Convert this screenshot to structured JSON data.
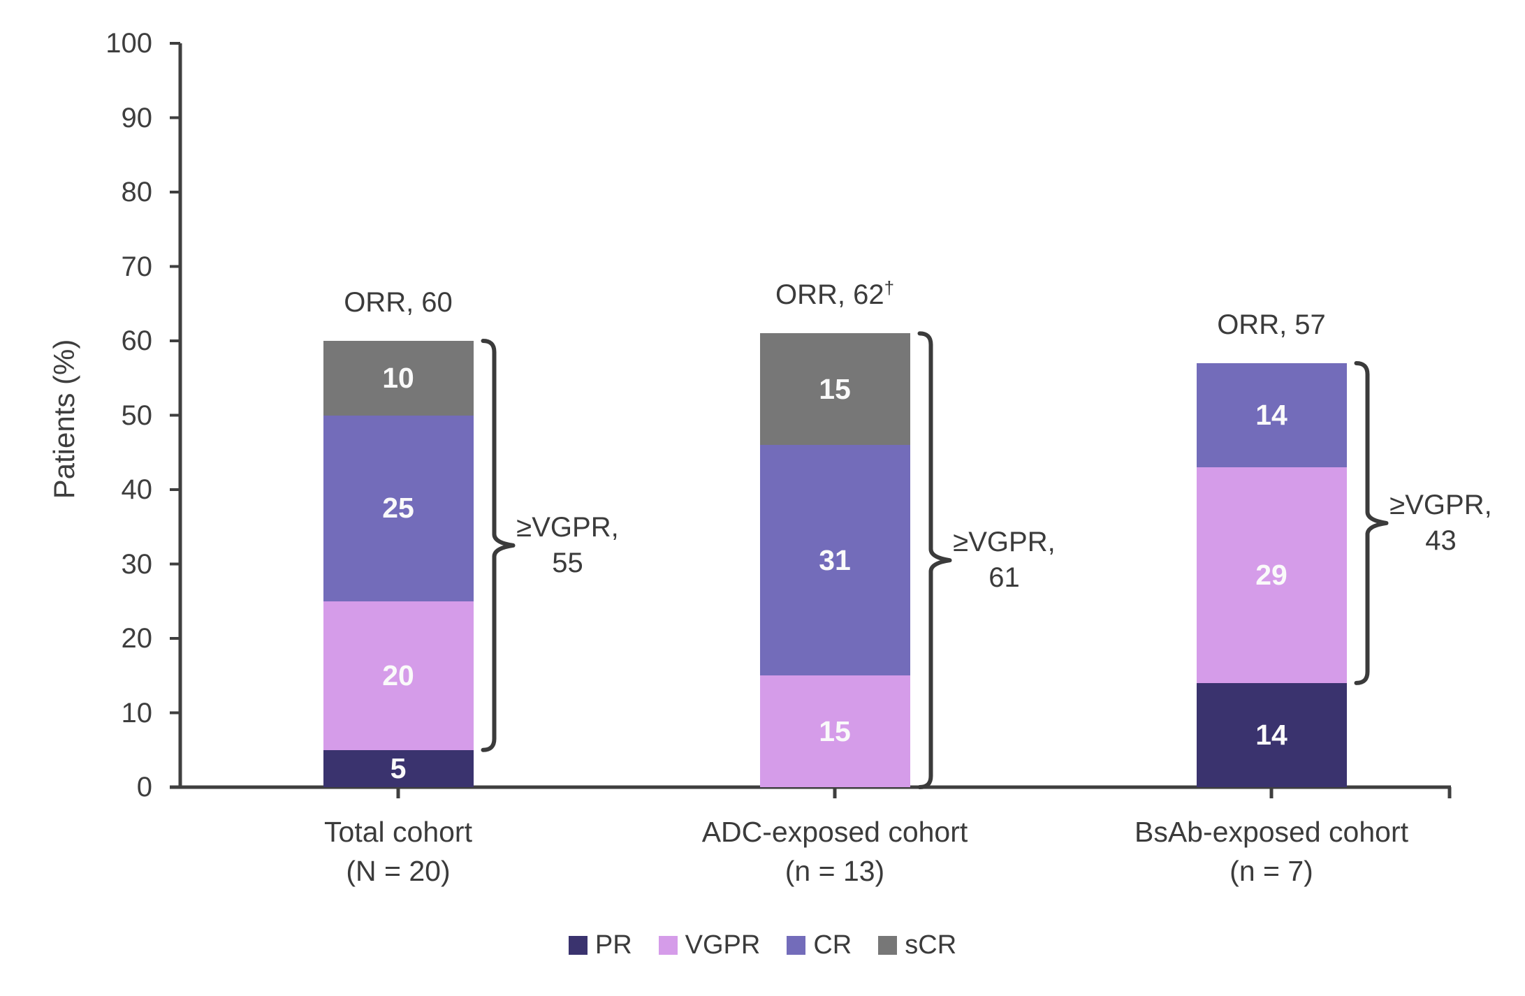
{
  "chart_data": {
    "type": "bar",
    "stacked": true,
    "title": "",
    "ylabel": "Patients (%)",
    "ylim": [
      0,
      100
    ],
    "yticks": [
      0,
      10,
      20,
      30,
      40,
      50,
      60,
      70,
      80,
      90,
      100
    ],
    "grid": false,
    "legend_position": "bottom",
    "categories": [
      "Total cohort",
      "ADC-exposed cohort",
      "BsAb-exposed cohort"
    ],
    "category_sublabels": [
      "(N = 20)",
      "(n = 13)",
      "(n = 7)"
    ],
    "series": [
      {
        "name": "PR",
        "color": "#3A336E",
        "values": [
          5,
          0,
          14
        ]
      },
      {
        "name": "VGPR",
        "color": "#D59CE9",
        "values": [
          20,
          15,
          29
        ]
      },
      {
        "name": "CR",
        "color": "#736CBA",
        "values": [
          25,
          31,
          14
        ]
      },
      {
        "name": "sCR",
        "color": "#777777",
        "values": [
          10,
          15,
          0
        ]
      }
    ],
    "orr_annotations": [
      {
        "text": "ORR, 60",
        "superscript": ""
      },
      {
        "text": "ORR, 62",
        "superscript": "†"
      },
      {
        "text": "ORR, 57",
        "superscript": ""
      }
    ],
    "braces": [
      {
        "label": "≥VGPR,",
        "value": "55",
        "from": 5,
        "to": 60
      },
      {
        "label": "≥VGPR,",
        "value": "61",
        "from": 0,
        "to": 61
      },
      {
        "label": "≥VGPR,",
        "value": "43",
        "from": 14,
        "to": 57
      }
    ],
    "colors": {
      "axis": "#3F3F3F",
      "text": "#3B3B3B",
      "segment_label": "#FAFAFA"
    }
  }
}
